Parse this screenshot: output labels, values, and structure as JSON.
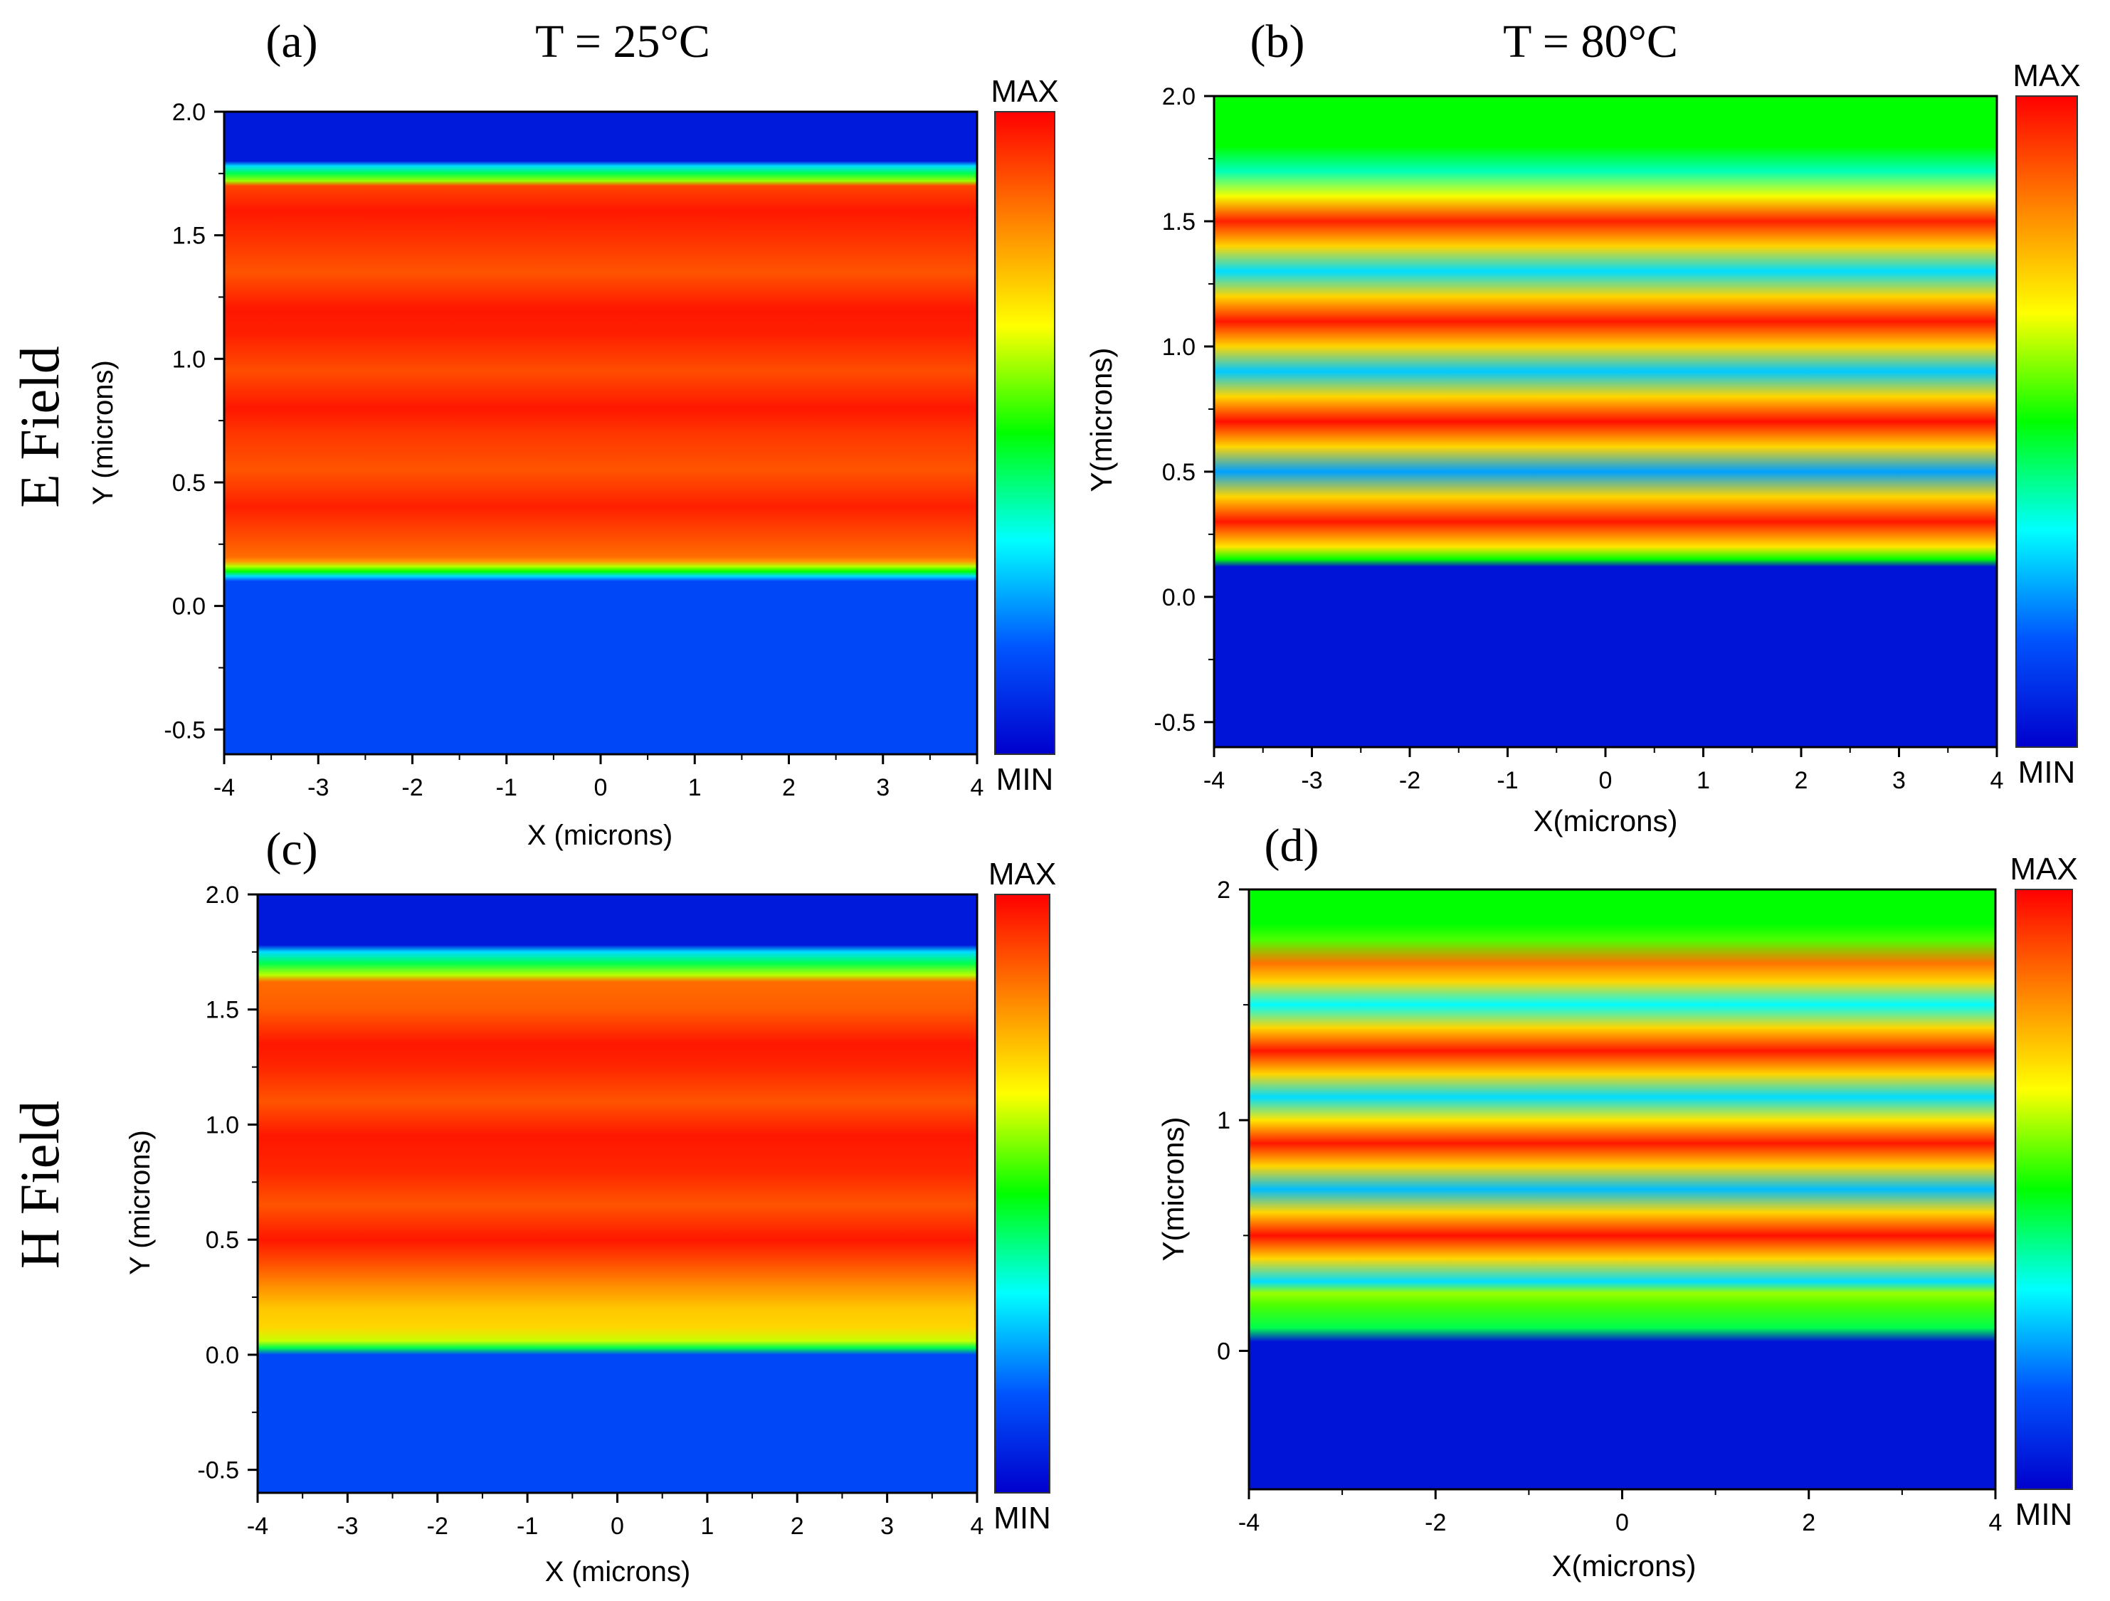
{
  "figure": {
    "row_labels": [
      "E Field",
      "H Field"
    ],
    "temperature_titles": [
      "T =  25°C",
      "T =  80°C"
    ]
  },
  "colorscale": {
    "stops": [
      "#0000cc",
      "#0055ff",
      "#00ffff",
      "#00ff00",
      "#ffff00",
      "#ff8000",
      "#ff0000"
    ],
    "max_label": "MAX",
    "min_label": "MIN"
  },
  "chart_data": [
    {
      "type": "heatmap",
      "panel_label": "(a)",
      "title": "T =  25°C",
      "xlabel": "X (microns)",
      "ylabel": "Y (microns)",
      "xlim": [
        -4,
        4
      ],
      "ylim": [
        -0.6,
        2.0
      ],
      "xticks": [
        -4,
        -3,
        -2,
        -1,
        0,
        1,
        2,
        3,
        4
      ],
      "xtick_labels": [
        "-4",
        "-3",
        "-2",
        "-1",
        "0",
        "1",
        "2",
        "3",
        "4"
      ],
      "yticks": [
        -0.5,
        0.0,
        0.5,
        1.0,
        1.5,
        2.0
      ],
      "ytick_labels": [
        "-0.5",
        "0.0",
        "0.5",
        "1.0",
        "1.5",
        "2.0"
      ],
      "colorbar": [
        "MAX",
        "MIN"
      ],
      "profile": [
        [
          -0.6,
          0.14
        ],
        [
          0.1,
          0.14
        ],
        [
          0.12,
          0.3
        ],
        [
          0.14,
          0.5
        ],
        [
          0.16,
          0.62
        ],
        [
          0.18,
          0.8
        ],
        [
          0.2,
          0.86
        ],
        [
          0.3,
          0.91
        ],
        [
          0.4,
          0.96
        ],
        [
          0.55,
          0.89
        ],
        [
          0.7,
          0.93
        ],
        [
          0.8,
          0.97
        ],
        [
          0.95,
          0.9
        ],
        [
          1.1,
          0.96
        ],
        [
          1.2,
          0.97
        ],
        [
          1.35,
          0.89
        ],
        [
          1.5,
          0.94
        ],
        [
          1.6,
          0.97
        ],
        [
          1.7,
          0.91
        ],
        [
          1.72,
          0.6
        ],
        [
          1.75,
          0.45
        ],
        [
          1.78,
          0.3
        ],
        [
          1.8,
          0.05
        ],
        [
          2.0,
          0.05
        ]
      ]
    },
    {
      "type": "heatmap",
      "panel_label": "(b)",
      "title": "T =  80°C",
      "xlabel": "X(microns)",
      "ylabel": "Y(microns)",
      "xlim": [
        -4,
        4
      ],
      "ylim": [
        -0.6,
        2.0
      ],
      "xticks": [
        -4,
        -3,
        -2,
        -1,
        0,
        1,
        2,
        3,
        4
      ],
      "xtick_labels": [
        "-4",
        "-3",
        "-2",
        "-1",
        "0",
        "1",
        "2",
        "3",
        "4"
      ],
      "yticks": [
        -0.5,
        0.0,
        0.5,
        1.0,
        1.5,
        2.0
      ],
      "ytick_labels": [
        "-0.5",
        "0.0",
        "0.5",
        "1.0",
        "1.5",
        "2.0"
      ],
      "colorbar": [
        "MAX",
        "MIN"
      ],
      "profile": [
        [
          -0.6,
          0.04
        ],
        [
          0.12,
          0.04
        ],
        [
          0.15,
          0.5
        ],
        [
          0.2,
          0.7
        ],
        [
          0.3,
          0.97
        ],
        [
          0.4,
          0.72
        ],
        [
          0.5,
          0.24
        ],
        [
          0.6,
          0.72
        ],
        [
          0.7,
          0.98
        ],
        [
          0.8,
          0.72
        ],
        [
          0.9,
          0.28
        ],
        [
          1.0,
          0.72
        ],
        [
          1.1,
          0.97
        ],
        [
          1.2,
          0.72
        ],
        [
          1.3,
          0.3
        ],
        [
          1.4,
          0.72
        ],
        [
          1.5,
          0.96
        ],
        [
          1.6,
          0.66
        ],
        [
          1.7,
          0.38
        ],
        [
          1.8,
          0.5
        ],
        [
          2.0,
          0.5
        ]
      ]
    },
    {
      "type": "heatmap",
      "panel_label": "(c)",
      "title": "",
      "xlabel": "X (microns)",
      "ylabel": "Y (microns)",
      "xlim": [
        -4,
        4
      ],
      "ylim": [
        -0.6,
        2.0
      ],
      "xticks": [
        -4,
        -3,
        -2,
        -1,
        0,
        1,
        2,
        3,
        4
      ],
      "xtick_labels": [
        "-4",
        "-3",
        "-2",
        "-1",
        "0",
        "1",
        "2",
        "3",
        "4"
      ],
      "yticks": [
        -0.5,
        0.0,
        0.5,
        1.0,
        1.5,
        2.0
      ],
      "ytick_labels": [
        "-0.5",
        "0.0",
        "0.5",
        "1.0",
        "1.5",
        "2.0"
      ],
      "colorbar": [
        "MAX",
        "MIN"
      ],
      "profile": [
        [
          -0.6,
          0.14
        ],
        [
          0.0,
          0.14
        ],
        [
          0.03,
          0.45
        ],
        [
          0.06,
          0.63
        ],
        [
          0.12,
          0.72
        ],
        [
          0.2,
          0.74
        ],
        [
          0.28,
          0.8
        ],
        [
          0.4,
          0.9
        ],
        [
          0.5,
          0.97
        ],
        [
          0.65,
          0.89
        ],
        [
          0.8,
          0.95
        ],
        [
          0.95,
          0.97
        ],
        [
          1.1,
          0.89
        ],
        [
          1.25,
          0.95
        ],
        [
          1.35,
          0.97
        ],
        [
          1.5,
          0.88
        ],
        [
          1.62,
          0.86
        ],
        [
          1.65,
          0.62
        ],
        [
          1.7,
          0.45
        ],
        [
          1.75,
          0.3
        ],
        [
          1.78,
          0.05
        ],
        [
          2.0,
          0.05
        ]
      ]
    },
    {
      "type": "heatmap",
      "panel_label": "(d)",
      "title": "",
      "xlabel": "X(microns)",
      "ylabel": "Y(microns)",
      "xlim": [
        -4,
        4
      ],
      "ylim": [
        -0.6,
        2.0
      ],
      "xticks": [
        -4,
        -2,
        0,
        2,
        4
      ],
      "xtick_labels": [
        "-4",
        "-2",
        "0",
        "2",
        "4"
      ],
      "yticks": [
        0,
        1,
        2
      ],
      "ytick_labels": [
        "0",
        "1",
        "2"
      ],
      "colorbar": [
        "MAX",
        "MIN"
      ],
      "profile": [
        [
          -0.6,
          0.04
        ],
        [
          0.04,
          0.04
        ],
        [
          0.1,
          0.45
        ],
        [
          0.2,
          0.55
        ],
        [
          0.25,
          0.6
        ],
        [
          0.3,
          0.3
        ],
        [
          0.4,
          0.72
        ],
        [
          0.5,
          0.98
        ],
        [
          0.6,
          0.72
        ],
        [
          0.7,
          0.27
        ],
        [
          0.8,
          0.72
        ],
        [
          0.9,
          0.97
        ],
        [
          1.0,
          0.7
        ],
        [
          1.1,
          0.3
        ],
        [
          1.2,
          0.72
        ],
        [
          1.3,
          0.97
        ],
        [
          1.4,
          0.72
        ],
        [
          1.5,
          0.33
        ],
        [
          1.6,
          0.72
        ],
        [
          1.68,
          0.85
        ],
        [
          1.78,
          0.55
        ],
        [
          1.85,
          0.5
        ],
        [
          2.0,
          0.5
        ]
      ]
    }
  ]
}
